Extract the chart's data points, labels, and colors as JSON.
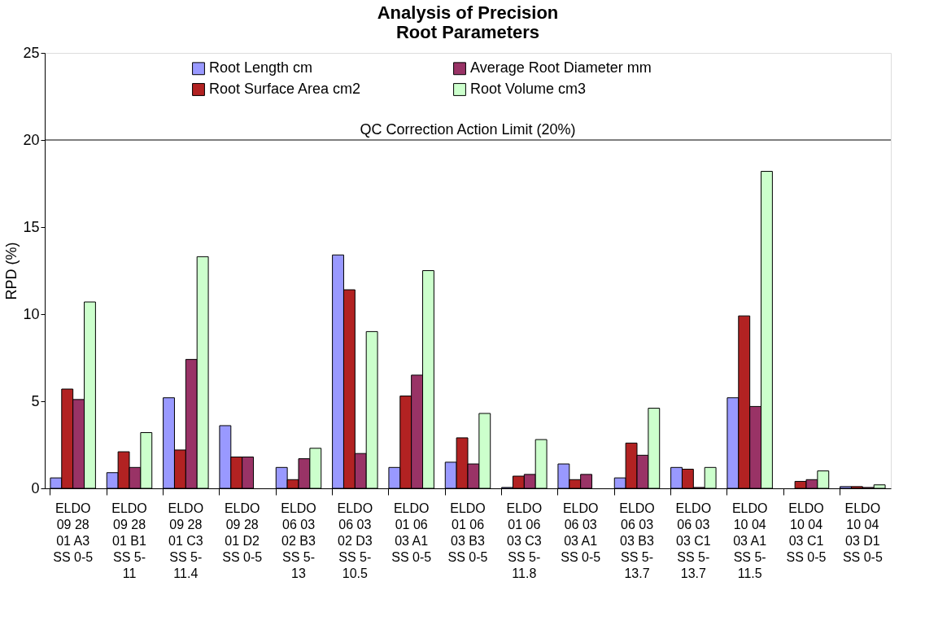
{
  "chart_data": {
    "type": "bar",
    "title": "Analysis of Precision\nRoot Parameters",
    "ylabel": "RPD (%)",
    "categories": [
      "ELDO\n09 28\n01 A3\nSS 0-5",
      "ELDO\n09 28\n01 B1\nSS 5-\n11",
      "ELDO\n09 28\n01 C3\nSS 5-\n11.4",
      "ELDO\n09 28\n01 D2\nSS 0-5",
      "ELDO\n06 03\n02 B3\nSS 5-\n13",
      "ELDO\n06 03\n02 D3\nSS 5-\n10.5",
      "ELDO\n01 06\n03 A1\nSS 0-5",
      "ELDO\n01 06\n03 B3\nSS 0-5",
      "ELDO\n01 06\n03 C3\nSS 5-\n11.8",
      "ELDO\n06 03\n03 A1\nSS 0-5",
      "ELDO\n06 03\n03 B3\nSS 5-\n13.7",
      "ELDO\n06 03\n03 C1\nSS 5-\n13.7",
      "ELDO\n10 04\n03 A1\nSS 5-\n11.5",
      "ELDO\n10 04\n03 C1\nSS 0-5",
      "ELDO\n10 04\n03 D1\nSS 0-5"
    ],
    "series": [
      {
        "name": "Root Length cm",
        "color": "#9999ff",
        "values": [
          0.6,
          0.9,
          5.2,
          3.6,
          1.2,
          13.4,
          1.2,
          1.5,
          0.05,
          1.4,
          0.6,
          1.2,
          5.2,
          null,
          0.1
        ]
      },
      {
        "name": "Root Surface Area cm2",
        "color": "#b22222",
        "values": [
          5.7,
          2.1,
          2.2,
          1.8,
          0.5,
          11.4,
          5.3,
          2.9,
          0.7,
          0.5,
          2.6,
          1.1,
          9.9,
          0.4,
          0.1
        ]
      },
      {
        "name": "Average Root Diameter mm",
        "color": "#993366",
        "values": [
          5.1,
          1.2,
          7.4,
          1.8,
          1.7,
          2.0,
          6.5,
          1.4,
          0.8,
          0.8,
          1.9,
          0.05,
          4.7,
          0.5,
          0.05
        ]
      },
      {
        "name": "Root Volume cm3",
        "color": "#ccffcc",
        "values": [
          10.7,
          3.2,
          13.3,
          null,
          2.3,
          9.0,
          12.5,
          4.3,
          2.8,
          null,
          4.6,
          1.2,
          18.2,
          1.0,
          0.2
        ]
      }
    ],
    "ylim": [
      0,
      25
    ],
    "yticks": [
      0,
      5,
      10,
      15,
      20,
      25
    ],
    "grid": false,
    "legend": "top",
    "ref_lines": [
      {
        "axis": "y",
        "value": 20,
        "label": "QC Correction Action Limit (20%)"
      }
    ]
  }
}
